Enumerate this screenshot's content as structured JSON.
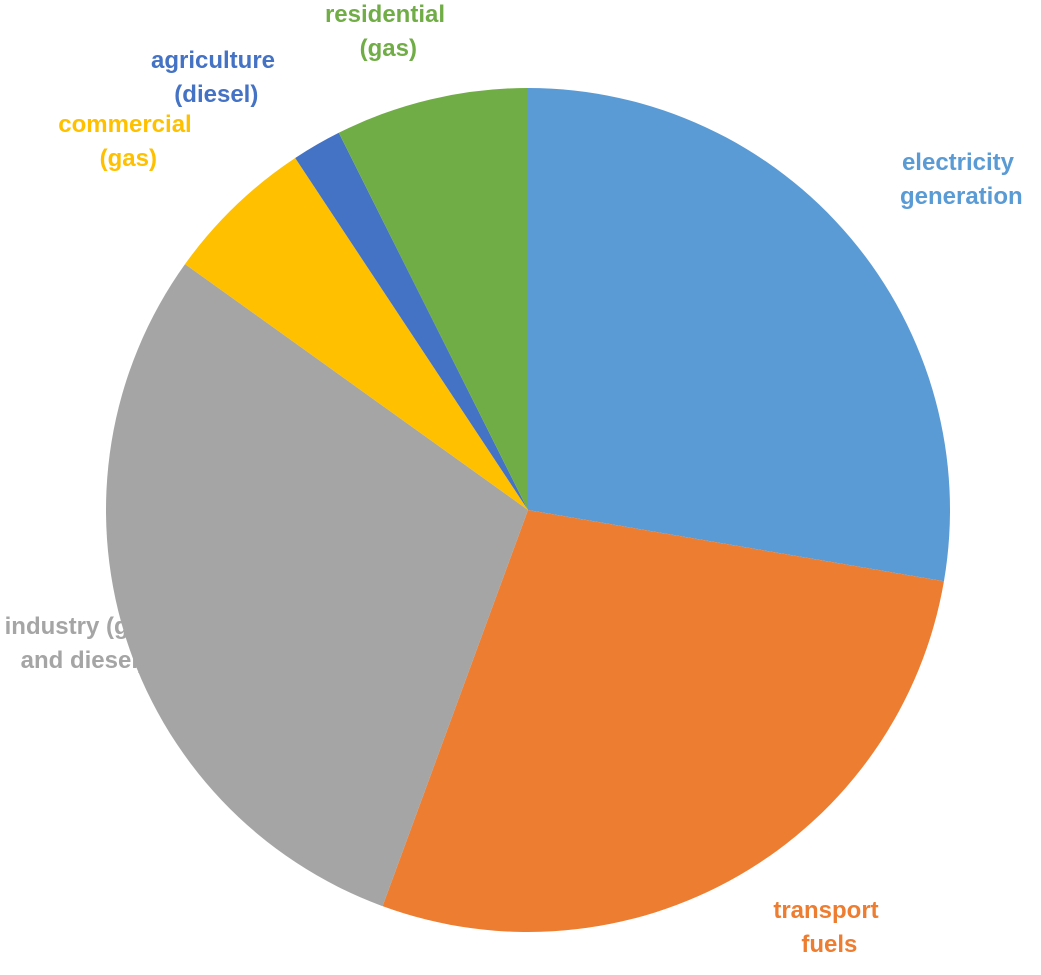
{
  "chart_data": {
    "type": "pie",
    "categories": [
      "electricity generation",
      "transport fuels",
      "industry (gas and diesel)",
      "commercial (gas)",
      "agriculture (diesel)",
      "residential (gas)"
    ],
    "values": [
      27.7,
      27.9,
      29.3,
      5.8,
      1.9,
      7.4
    ],
    "colors": [
      "#5B9BD5",
      "#ED7D31",
      "#A5A5A5",
      "#FFC000",
      "#4472C4",
      "#70AD47"
    ]
  }
}
